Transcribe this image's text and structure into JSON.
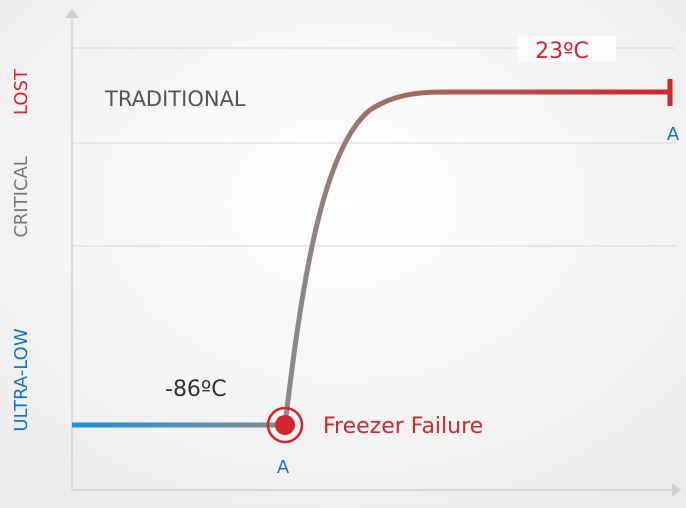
{
  "axis_labels": {
    "top": "LOST",
    "middle": "CRITICAL",
    "bottom": "ULTRA-LOW"
  },
  "zone_label": "TRADITIONAL",
  "annotations": {
    "high_temp": "23ºC",
    "low_temp": "-86ºC",
    "event": "Freezer Failure",
    "point_a_start": "A",
    "point_a_end": "A"
  }
}
